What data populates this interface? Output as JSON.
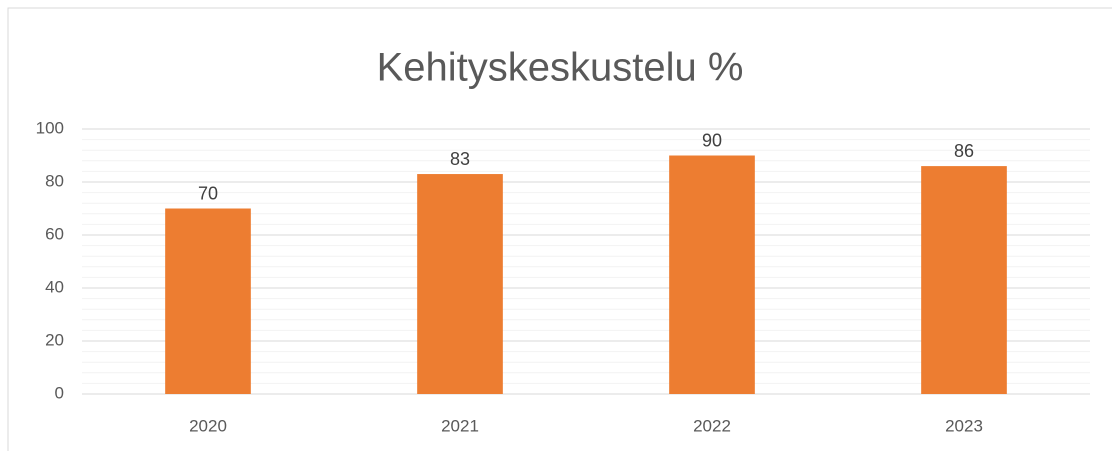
{
  "chart_data": {
    "type": "bar",
    "title": "Kehityskeskustelu %",
    "categories": [
      "2020",
      "2021",
      "2022",
      "2023"
    ],
    "values": [
      70,
      83,
      90,
      86
    ],
    "color": "#ed7d31",
    "ylim": [
      0,
      100
    ],
    "yticks": [
      0,
      20,
      40,
      60,
      80,
      100
    ],
    "minor_yticks": [
      4,
      8,
      12,
      16,
      24,
      28,
      32,
      36,
      44,
      48,
      52,
      56,
      64,
      68,
      72,
      76,
      84,
      88,
      92,
      96
    ],
    "grid": true
  }
}
